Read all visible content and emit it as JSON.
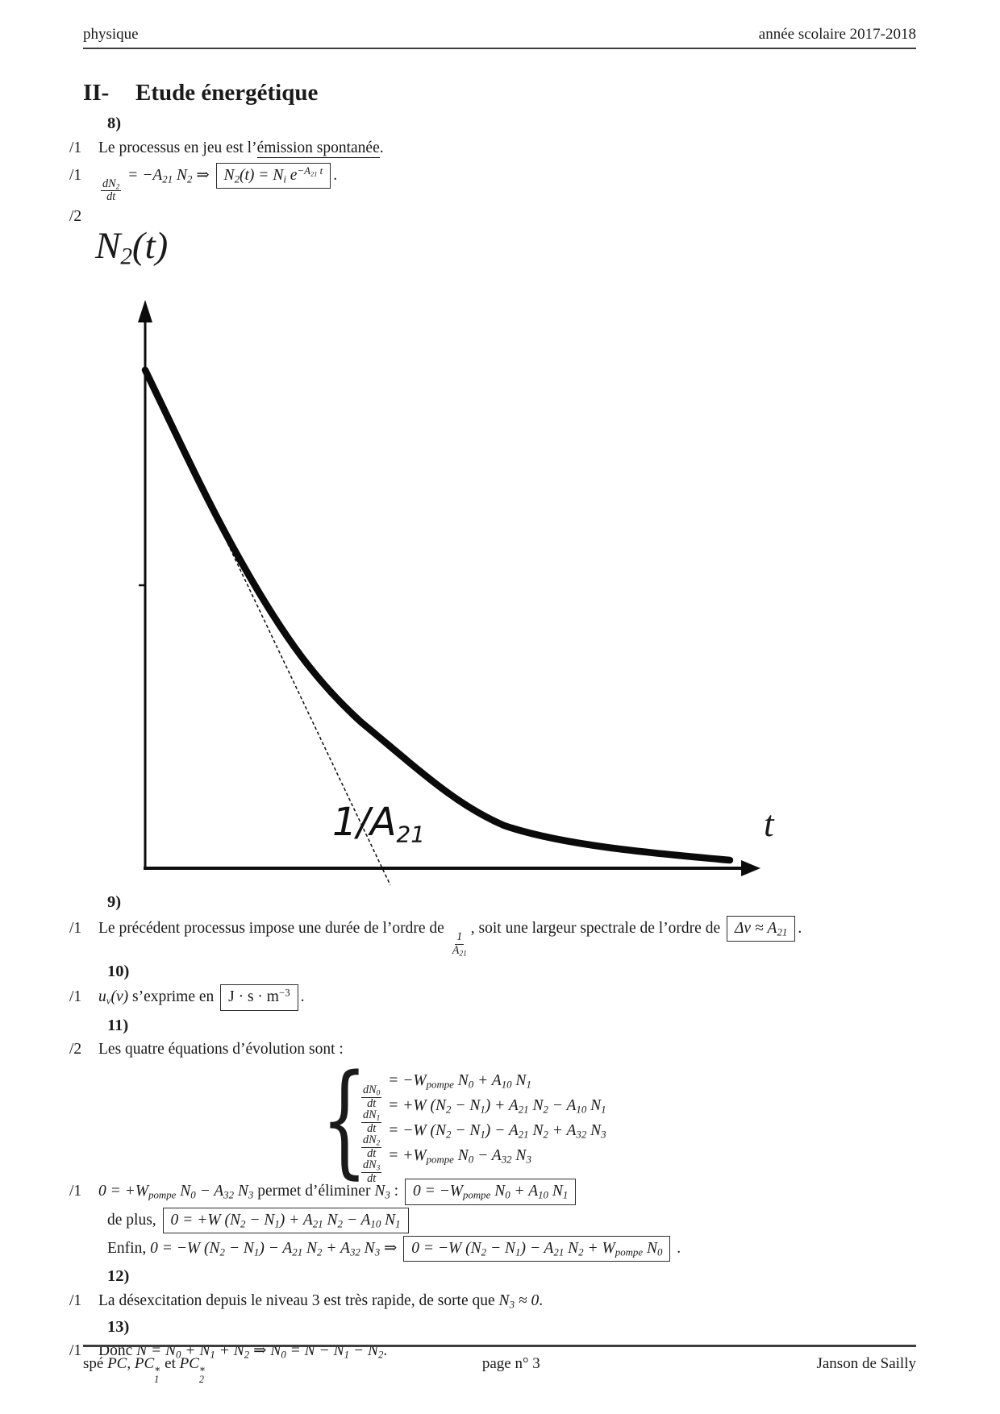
{
  "header": {
    "left": "physique",
    "right": "année scolaire 2017-2018"
  },
  "title": {
    "numeral": "II-",
    "text": "Etude énergétique"
  },
  "lines_before_figure": [
    {
      "type": "qnum",
      "label": "8)"
    },
    {
      "type": "line",
      "marker": "/1",
      "segments": [
        {
          "t": "txt",
          "s": "Le processus en jeu est l’"
        },
        {
          "t": "u",
          "s": "émission spontanée"
        },
        {
          "t": "txt",
          "s": "."
        }
      ]
    },
    {
      "type": "line",
      "marker": "/1",
      "segments": [
        {
          "t": "frac",
          "n": "dN_{2}",
          "d": "dt"
        },
        {
          "t": "m",
          "s": " = −A_{21} N_{2} ⇒ "
        },
        {
          "t": "box",
          "s": "N_{2}(t) = N_{i} e^{−A_{21} t}"
        },
        {
          "t": "txt",
          "s": "."
        }
      ]
    },
    {
      "type": "line",
      "marker": "/2",
      "segments": []
    }
  ],
  "figure": {
    "y_label": {
      "main": "N",
      "sub": "2",
      "rest": "(t)"
    },
    "tangent_label": {
      "main": "1/A",
      "sub": "21"
    },
    "x_label": "t"
  },
  "lines_after_figure": [
    {
      "type": "qnum",
      "label": "9)"
    },
    {
      "type": "line",
      "marker": "/1",
      "segments": [
        {
          "t": "txt",
          "s": "Le précédent processus impose une durée de l’ordre de "
        },
        {
          "t": "frac",
          "n": "1",
          "d": "A_{21}"
        },
        {
          "t": "txt",
          "s": ", soit une largeur spectrale de l’ordre de "
        },
        {
          "t": "box",
          "s": "Δν ≈ A_{21}"
        },
        {
          "t": "txt",
          "s": "."
        }
      ]
    },
    {
      "type": "qnum",
      "label": "10)"
    },
    {
      "type": "line",
      "marker": "/1",
      "segments": [
        {
          "t": "m",
          "s": "u_{ν}(ν)"
        },
        {
          "t": "txt",
          "s": " s’exprime en "
        },
        {
          "t": "boxrm",
          "s": "J · s · m^{−3}"
        },
        {
          "t": "txt",
          "s": "."
        }
      ]
    },
    {
      "type": "qnum",
      "label": "11)"
    },
    {
      "type": "line",
      "marker": "/2",
      "segments": [
        {
          "t": "txt",
          "s": "Les quatre équations d’évolution sont :"
        }
      ]
    },
    {
      "type": "system",
      "rows": [
        {
          "n": "dN_{0}",
          "d": "dt",
          "rhs": "= −W_{pompe} N_{0} + A_{10} N_{1}"
        },
        {
          "n": "dN_{1}",
          "d": "dt",
          "rhs": "= +W (N_{2} − N_{1}) + A_{21} N_{2} − A_{10} N_{1}"
        },
        {
          "n": "dN_{2}",
          "d": "dt",
          "rhs": "= −W (N_{2} − N_{1}) − A_{21} N_{2} + A_{32} N_{3}"
        },
        {
          "n": "dN_{3}",
          "d": "dt",
          "rhs": "= +W_{pompe} N_{0} − A_{32} N_{3}"
        }
      ]
    },
    {
      "type": "line",
      "marker": "/1",
      "segments": [
        {
          "t": "m",
          "s": "0 = +W_{pompe} N_{0} − A_{32} N_{3}"
        },
        {
          "t": "txt",
          "s": " permet d’éliminer "
        },
        {
          "t": "m",
          "s": "N_{3}"
        },
        {
          "t": "txt",
          "s": " : "
        },
        {
          "t": "box",
          "s": "0 = −W_{pompe} N_{0} + A_{10} N_{1}"
        }
      ]
    },
    {
      "type": "line",
      "marker": "",
      "segments": [
        {
          "t": "txt",
          "s": "de plus, "
        },
        {
          "t": "box",
          "s": "0 = +W (N_{2} − N_{1}) + A_{21} N_{2} − A_{10} N_{1}"
        }
      ]
    },
    {
      "type": "line",
      "marker": "",
      "segments": [
        {
          "t": "txt",
          "s": "Enfin, "
        },
        {
          "t": "m",
          "s": "0 = −W (N_{2} − N_{1}) − A_{21} N_{2} + A_{32} N_{3} ⇒ "
        },
        {
          "t": "box",
          "s": "0 = −W (N_{2} − N_{1}) − A_{21} N_{2} + W_{pompe} N_{0}"
        },
        {
          "t": "txt",
          "s": " ."
        }
      ]
    },
    {
      "type": "qnum",
      "label": "12)"
    },
    {
      "type": "line",
      "marker": "/1",
      "segments": [
        {
          "t": "txt",
          "s": "La désexcitation depuis le niveau 3 est très rapide, de sorte que "
        },
        {
          "t": "m",
          "s": "N_{3} ≈ 0"
        },
        {
          "t": "txt",
          "s": "."
        }
      ]
    },
    {
      "type": "qnum",
      "label": "13)"
    },
    {
      "type": "line",
      "marker": "/1",
      "segments": [
        {
          "t": "txt",
          "s": "Donc "
        },
        {
          "t": "m",
          "s": "N = N_{0} + N_{1} + N_{2} ⇒ N_{0} = N − N_{1} − N_{2}"
        },
        {
          "t": "txt",
          "s": "."
        }
      ]
    }
  ],
  "footer": {
    "left_segments": [
      {
        "t": "txt",
        "s": "spé "
      },
      {
        "t": "m",
        "s": "PC"
      },
      {
        "t": "txt",
        "s": ", "
      },
      {
        "t": "m",
        "s": "PC\\ss{∗}{1}"
      },
      {
        "t": "txt",
        "s": " et "
      },
      {
        "t": "m",
        "s": "PC\\ss{∗}{2}"
      }
    ],
    "center": "page n° 3",
    "right": "Janson de Sailly"
  }
}
